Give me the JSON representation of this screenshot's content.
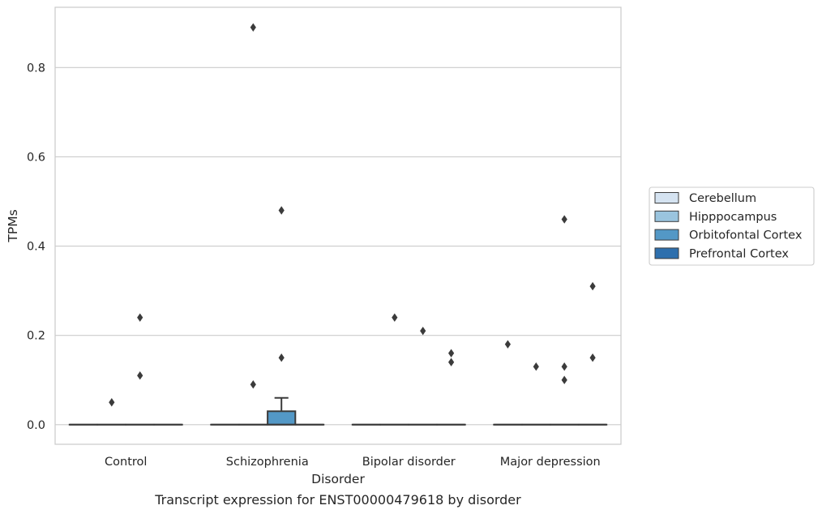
{
  "chart_data": {
    "type": "box",
    "xlabel": "Disorder",
    "ylabel": "TPMs",
    "caption": "Transcript expression for ENST00000479618 by disorder",
    "ylim": [
      -0.044,
      0.935
    ],
    "yticks": [
      {
        "value": 0.0,
        "label": "0.0"
      },
      {
        "value": 0.2,
        "label": "0.2"
      },
      {
        "value": 0.4,
        "label": "0.4"
      },
      {
        "value": 0.6,
        "label": "0.6"
      },
      {
        "value": 0.8,
        "label": "0.8"
      }
    ],
    "grid": "horizontal",
    "legend_position": "right",
    "categories": [
      "Control",
      "Schizophrenia",
      "Bipolar disorder",
      "Major depression"
    ],
    "series": [
      {
        "name": "Cerebellum",
        "color": "#d5e3f1"
      },
      {
        "name": "Hipppocampus",
        "color": "#9ac4de"
      },
      {
        "name": "Orbitofontal Cortex",
        "color": "#5398c6"
      },
      {
        "name": "Prefrontal Cortex",
        "color": "#2e6fad"
      }
    ],
    "boxes": [
      {
        "category": 0,
        "series": 0,
        "q1": 0,
        "median": 0,
        "q3": 0,
        "whisker_low": 0,
        "whisker_high": 0
      },
      {
        "category": 0,
        "series": 1,
        "q1": 0,
        "median": 0,
        "q3": 0,
        "whisker_low": 0,
        "whisker_high": 0
      },
      {
        "category": 0,
        "series": 2,
        "q1": 0,
        "median": 0,
        "q3": 0,
        "whisker_low": 0,
        "whisker_high": 0
      },
      {
        "category": 0,
        "series": 3,
        "q1": 0,
        "median": 0,
        "q3": 0,
        "whisker_low": 0,
        "whisker_high": 0
      },
      {
        "category": 1,
        "series": 0,
        "q1": 0,
        "median": 0,
        "q3": 0,
        "whisker_low": 0,
        "whisker_high": 0
      },
      {
        "category": 1,
        "series": 1,
        "q1": 0,
        "median": 0,
        "q3": 0,
        "whisker_low": 0,
        "whisker_high": 0
      },
      {
        "category": 1,
        "series": 2,
        "q1": 0,
        "median": 0,
        "q3": 0.03,
        "whisker_low": 0,
        "whisker_high": 0.06
      },
      {
        "category": 1,
        "series": 3,
        "q1": 0,
        "median": 0,
        "q3": 0,
        "whisker_low": 0,
        "whisker_high": 0
      },
      {
        "category": 2,
        "series": 0,
        "q1": 0,
        "median": 0,
        "q3": 0,
        "whisker_low": 0,
        "whisker_high": 0
      },
      {
        "category": 2,
        "series": 1,
        "q1": 0,
        "median": 0,
        "q3": 0,
        "whisker_low": 0,
        "whisker_high": 0
      },
      {
        "category": 2,
        "series": 2,
        "q1": 0,
        "median": 0,
        "q3": 0,
        "whisker_low": 0,
        "whisker_high": 0
      },
      {
        "category": 2,
        "series": 3,
        "q1": 0,
        "median": 0,
        "q3": 0,
        "whisker_low": 0,
        "whisker_high": 0
      },
      {
        "category": 3,
        "series": 0,
        "q1": 0,
        "median": 0,
        "q3": 0,
        "whisker_low": 0,
        "whisker_high": 0
      },
      {
        "category": 3,
        "series": 1,
        "q1": 0,
        "median": 0,
        "q3": 0,
        "whisker_low": 0,
        "whisker_high": 0
      },
      {
        "category": 3,
        "series": 2,
        "q1": 0,
        "median": 0,
        "q3": 0,
        "whisker_low": 0,
        "whisker_high": 0
      },
      {
        "category": 3,
        "series": 3,
        "q1": 0,
        "median": 0,
        "q3": 0,
        "whisker_low": 0,
        "whisker_high": 0
      }
    ],
    "outliers": [
      {
        "category": 0,
        "series": 1,
        "value": 0.05
      },
      {
        "category": 0,
        "series": 2,
        "value": 0.11
      },
      {
        "category": 0,
        "series": 2,
        "value": 0.24
      },
      {
        "category": 1,
        "series": 1,
        "value": 0.89
      },
      {
        "category": 1,
        "series": 1,
        "value": 0.09
      },
      {
        "category": 1,
        "series": 2,
        "value": 0.48
      },
      {
        "category": 1,
        "series": 2,
        "value": 0.15
      },
      {
        "category": 2,
        "series": 1,
        "value": 0.24
      },
      {
        "category": 2,
        "series": 2,
        "value": 0.21
      },
      {
        "category": 2,
        "series": 3,
        "value": 0.16
      },
      {
        "category": 2,
        "series": 3,
        "value": 0.14
      },
      {
        "category": 3,
        "series": 0,
        "value": 0.18
      },
      {
        "category": 3,
        "series": 1,
        "value": 0.13
      },
      {
        "category": 3,
        "series": 2,
        "value": 0.46
      },
      {
        "category": 3,
        "series": 2,
        "value": 0.13
      },
      {
        "category": 3,
        "series": 2,
        "value": 0.1
      },
      {
        "category": 3,
        "series": 3,
        "value": 0.31
      },
      {
        "category": 3,
        "series": 3,
        "value": 0.15
      }
    ]
  }
}
